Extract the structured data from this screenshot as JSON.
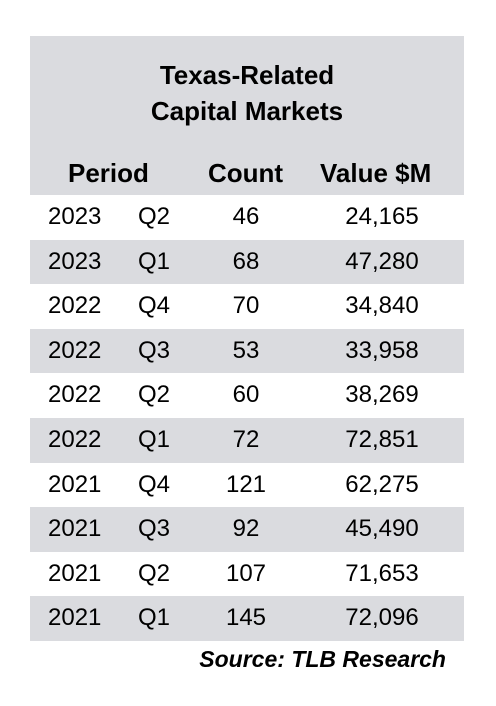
{
  "chart_data": {
    "type": "table",
    "title_lines": [
      "Texas-Related",
      "Capital Markets"
    ],
    "columns": [
      "Period",
      "Count",
      "Value $M"
    ],
    "rows": [
      {
        "year": "2023",
        "quarter": "Q2",
        "count": "46",
        "value": "24,165"
      },
      {
        "year": "2023",
        "quarter": "Q1",
        "count": "68",
        "value": "47,280"
      },
      {
        "year": "2022",
        "quarter": "Q4",
        "count": "70",
        "value": "34,840"
      },
      {
        "year": "2022",
        "quarter": "Q3",
        "count": "53",
        "value": "33,958"
      },
      {
        "year": "2022",
        "quarter": "Q2",
        "count": "60",
        "value": "38,269"
      },
      {
        "year": "2022",
        "quarter": "Q1",
        "count": "72",
        "value": "72,851"
      },
      {
        "year": "2021",
        "quarter": "Q4",
        "count": "121",
        "value": "62,275"
      },
      {
        "year": "2021",
        "quarter": "Q3",
        "count": "92",
        "value": "45,490"
      },
      {
        "year": "2021",
        "quarter": "Q2",
        "count": "107",
        "value": "71,653"
      },
      {
        "year": "2021",
        "quarter": "Q1",
        "count": "145",
        "value": "72,096"
      }
    ],
    "source": "Source: TLB Research"
  },
  "colors": {
    "shade": "#dadbdf",
    "text": "#000000"
  }
}
